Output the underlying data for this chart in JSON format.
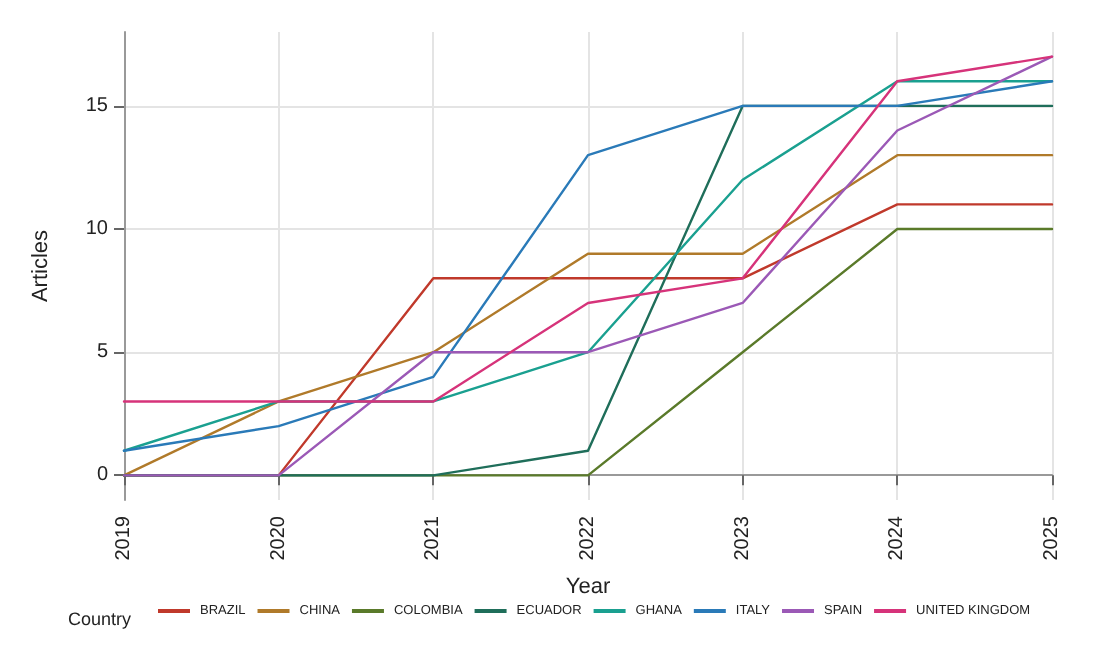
{
  "chart_data": {
    "type": "line",
    "xlabel": "Year",
    "ylabel": "Articles",
    "legend_title": "Country",
    "categories": [
      "2019",
      "2020",
      "2021",
      "2022",
      "2023",
      "2024",
      "2025"
    ],
    "series": [
      {
        "name": "BRAZIL",
        "color": "#c0392b",
        "values": [
          0,
          0,
          8,
          8,
          8,
          11,
          11
        ]
      },
      {
        "name": "CHINA",
        "color": "#b07a2a",
        "values": [
          0,
          3,
          5,
          9,
          9,
          13,
          13
        ]
      },
      {
        "name": "COLOMBIA",
        "color": "#5a7a2a",
        "values": [
          0,
          0,
          0,
          0,
          5,
          10,
          10
        ]
      },
      {
        "name": "ECUADOR",
        "color": "#1f6e5a",
        "values": [
          0,
          0,
          0,
          1,
          15,
          15,
          15
        ]
      },
      {
        "name": "GHANA",
        "color": "#1aa090",
        "values": [
          1,
          3,
          3,
          5,
          12,
          16,
          16
        ]
      },
      {
        "name": "ITALY",
        "color": "#2a7ab8",
        "values": [
          1,
          2,
          4,
          13,
          15,
          15,
          16
        ]
      },
      {
        "name": "SPAIN",
        "color": "#9b59b6",
        "values": [
          0,
          0,
          5,
          5,
          7,
          14,
          17
        ]
      },
      {
        "name": "UNITED KINGDOM",
        "color": "#d6337a",
        "values": [
          3,
          3,
          3,
          7,
          8,
          16,
          17
        ]
      }
    ],
    "ylim": [
      -1,
      18
    ],
    "yticks": [
      0,
      5,
      10,
      15
    ],
    "grid": true,
    "legend": "bottom",
    "marker": "none",
    "line_style": "solid"
  }
}
